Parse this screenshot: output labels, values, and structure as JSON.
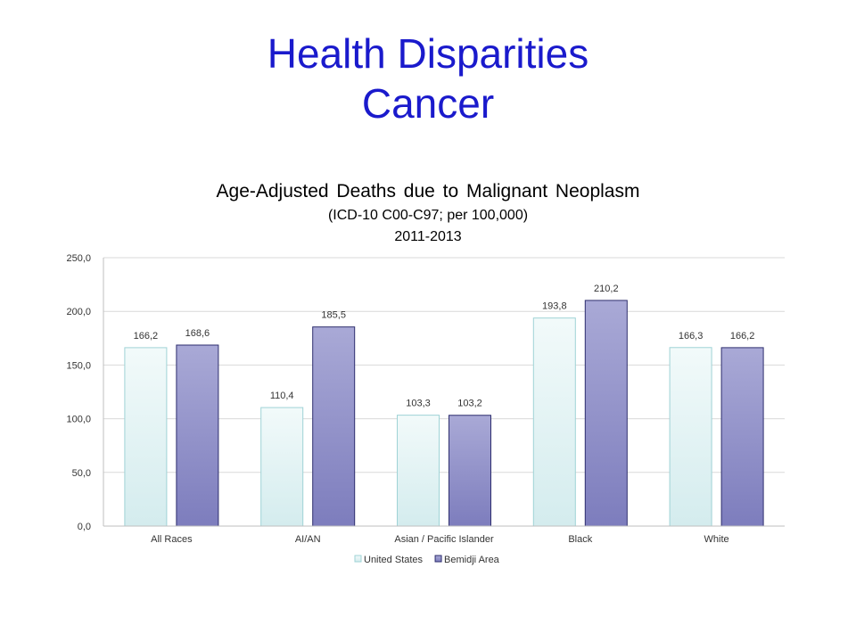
{
  "slide": {
    "title_line1": "Health Disparities",
    "title_line2": "Cancer"
  },
  "chart_data": {
    "type": "bar",
    "title": "Age-Adjusted Deaths due to Malignant Neoplasm",
    "subtitle_line1": "(ICD-10  C00-C97; per 100,000)",
    "subtitle_line2": "2011-2013",
    "categories": [
      "All Races",
      "AI/AN",
      "Asian / Pacific Islander",
      "Black",
      "White"
    ],
    "series": [
      {
        "name": "United States",
        "values": [
          166.2,
          110.4,
          103.3,
          193.8,
          166.3
        ],
        "labels": [
          "166,2",
          "110,4",
          "103,3",
          "193,8",
          "166,3"
        ],
        "fill_top": "#f2fafa",
        "fill_bottom": "#d4ecee",
        "stroke": "#9fd3d6"
      },
      {
        "name": "Bemidji Area",
        "values": [
          168.6,
          185.5,
          103.2,
          210.2,
          166.2
        ],
        "labels": [
          "168,6",
          "185,5",
          "103,2",
          "210,2",
          "166,2"
        ],
        "fill_top": "#a9a9d6",
        "fill_bottom": "#7d7dbd",
        "stroke": "#2e2e6e"
      }
    ],
    "ylim": [
      0,
      250
    ],
    "yticks": [
      0,
      50,
      100,
      150,
      200,
      250
    ],
    "ytick_labels": [
      "0,0",
      "50,0",
      "100,0",
      "150,0",
      "200,0",
      "250,0"
    ],
    "grid": true,
    "legend_position": "bottom"
  }
}
